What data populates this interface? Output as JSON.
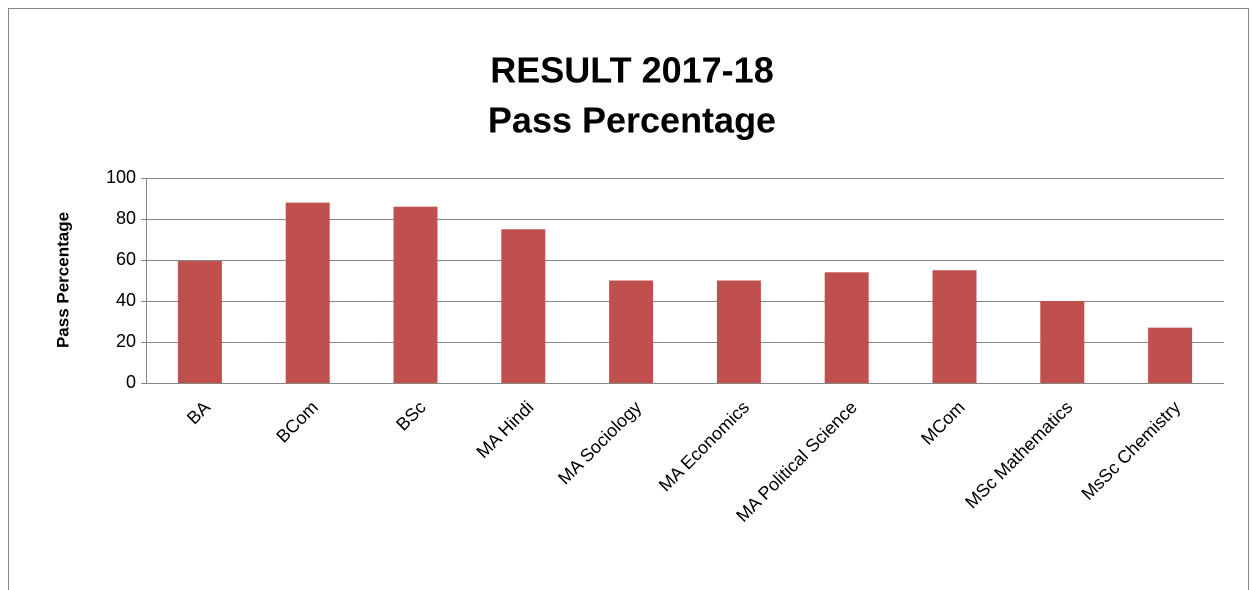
{
  "chart_data": {
    "type": "bar",
    "title": "RESULT 2017-18",
    "subtitle": "Pass Percentage",
    "y_label": "Pass Percentage",
    "categories": [
      "BA",
      "BCom",
      "BSc",
      "MA Hindi",
      "MA Sociology",
      "MA Economics",
      "MA Political Science",
      "MCom",
      "MSc Mathematics",
      "MsSc Chemistry"
    ],
    "values": [
      59.5,
      88,
      86,
      75,
      50,
      50,
      54,
      55,
      40,
      27
    ],
    "color": "#c0504d",
    "ylim": [
      0,
      100
    ],
    "yticks": [
      0,
      20,
      40,
      60,
      80,
      100
    ],
    "grid": true
  }
}
